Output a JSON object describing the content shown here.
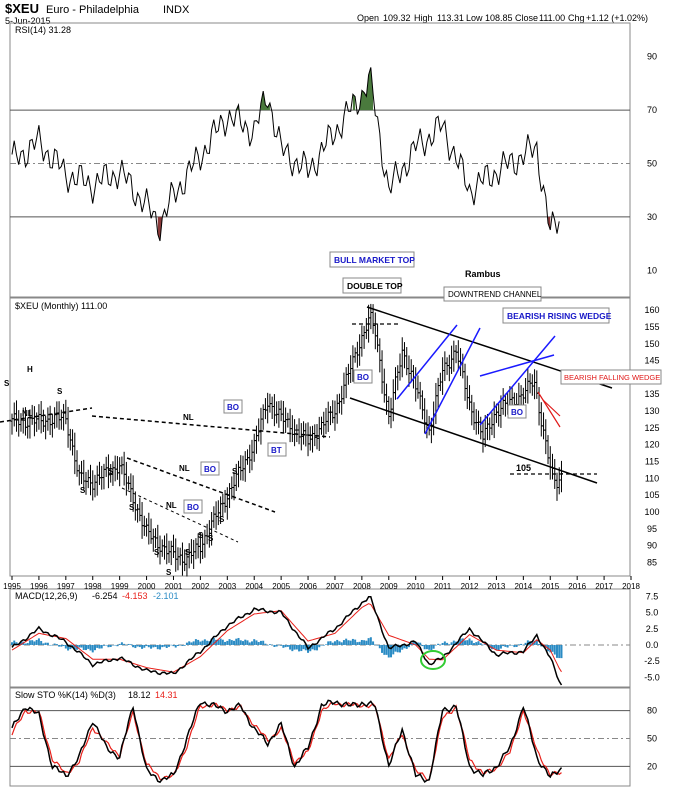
{
  "header": {
    "symbol": "$XEU",
    "name": "Euro - Philadelphia",
    "exchange": "INDX",
    "date": "5-Jun-2015",
    "quote": {
      "open_label": "Open",
      "open": "109.32",
      "high_label": "High",
      "high": "113.31",
      "low_label": "Low",
      "low": "108.85",
      "close_label": "Close",
      "close": "111.00",
      "chg_label": "Chg",
      "chg": "+1.12 (+1.02%)"
    }
  },
  "colors": {
    "price_bars": "#000000",
    "trendline_black": "#000000",
    "trendline_blue": "#1a1aff",
    "macd_hist": "#2a8bc4",
    "signal_red": "#e8201a",
    "rsi_fill_over": "#4a7a3d",
    "rsi_fill_under": "#8a3a3a",
    "annotation_blue": "#1818c8",
    "annotation_red": "#e01818",
    "green_circle": "#33cc33"
  },
  "panels": {
    "rsi": {
      "label": "RSI(14) 31.28",
      "y_ticks": [
        "90",
        "70",
        "50",
        "30",
        "10"
      ],
      "levels": [
        70,
        50,
        30
      ],
      "ylim": [
        0,
        100
      ]
    },
    "price": {
      "label": "$XEU (Monthly) 111.00",
      "y_ticks": [
        "160",
        "155",
        "150",
        "145",
        "140",
        "135",
        "130",
        "125",
        "120",
        "115",
        "110",
        "105",
        "100",
        "95",
        "90",
        "85"
      ],
      "ylim": [
        81,
        163
      ],
      "x_ticks": [
        "1995",
        "1996",
        "1997",
        "1998",
        "1999",
        "2000",
        "2001",
        "2002",
        "2003",
        "2004",
        "2005",
        "2006",
        "2007",
        "2008",
        "2009",
        "2010",
        "2011",
        "2012",
        "2013",
        "2014",
        "2015",
        "2016",
        "2017",
        "2018"
      ]
    },
    "macd": {
      "label_main": "MACD(12,26,9)",
      "label_macd": "-6.254",
      "label_signal": "-4.153",
      "label_hist": "-2.101",
      "y_ticks": [
        "7.5",
        "5.0",
        "2.5",
        "0.0",
        "-2.5",
        "-5.0"
      ],
      "ylim": [
        -6.5,
        8.5
      ]
    },
    "sto": {
      "label_main": "Slow STO %K(14) %D(3)",
      "label_k": "18.12",
      "label_d": "14.31",
      "y_ticks": [
        "80",
        "50",
        "20"
      ],
      "levels": [
        80,
        50,
        20
      ],
      "ylim": [
        0,
        100
      ]
    }
  },
  "annotations": {
    "bull_market_top": "BULL MARKET TOP",
    "double_top": "DOUBLE TOP",
    "rambus": "Rambus",
    "downtrend_channel": "DOWNTREND CHANNEL",
    "bearish_rising_wedge": "BEARISH RISING WEDGE",
    "bearish_falling_wedge": "BEARISH FALLING WEDGE",
    "level_105": "105",
    "nl": "NL",
    "s": "S",
    "h": "H",
    "bo": "BO",
    "bt": "BT"
  },
  "chart_data": [
    {
      "type": "line",
      "title": "RSI(14) 31.28",
      "x": [
        1995.0,
        1996.0,
        1997.0,
        1998.0,
        1999.0,
        2000.0,
        2000.5,
        2001.0,
        2002.0,
        2003.0,
        2004.0,
        2004.5,
        2005.0,
        2006.0,
        2007.0,
        2008.0,
        2008.3,
        2009.0,
        2010.0,
        2011.0,
        2012.0,
        2013.0,
        2014.0,
        2014.5,
        2015.0,
        2015.4
      ],
      "values": [
        51,
        58,
        46,
        42,
        47,
        34,
        27,
        38,
        53,
        68,
        62,
        76,
        55,
        47,
        62,
        76,
        82,
        40,
        56,
        64,
        40,
        47,
        53,
        56,
        24,
        31
      ],
      "ylim": [
        0,
        100
      ],
      "levels": [
        70,
        50,
        30
      ]
    },
    {
      "type": "bar",
      "title": "$XEU (Monthly) 111.00",
      "x": [
        1995.0,
        1996.0,
        1997.0,
        1997.5,
        1998.0,
        1999.0,
        2000.0,
        2000.8,
        2001.5,
        2002.0,
        2003.0,
        2004.0,
        2004.5,
        2005.0,
        2006.0,
        2007.0,
        2008.0,
        2008.3,
        2008.5,
        2009.0,
        2009.5,
        2010.0,
        2010.5,
        2011.0,
        2011.5,
        2012.0,
        2012.5,
        2013.0,
        2014.0,
        2014.4,
        2015.0,
        2015.2,
        2015.4
      ],
      "values": [
        127,
        127,
        128,
        110,
        109,
        114,
        94,
        88,
        86,
        90,
        105,
        120,
        133,
        128,
        121,
        130,
        152,
        158,
        153,
        128,
        148,
        137,
        124,
        142,
        148,
        132,
        122,
        130,
        135,
        139,
        113,
        108,
        111
      ],
      "ylim": [
        81,
        163
      ],
      "xlim": [
        1995,
        2018.5
      ]
    },
    {
      "type": "line",
      "title": "MACD(12,26,9)",
      "series": [
        {
          "name": "MACD",
          "x": [
            1995.0,
            1996.0,
            1997.0,
            1998.0,
            1999.0,
            2000.0,
            2001.0,
            2002.0,
            2003.0,
            2004.0,
            2005.0,
            2006.0,
            2007.0,
            2008.0,
            2008.3,
            2009.0,
            2010.0,
            2010.5,
            2011.0,
            2012.0,
            2013.0,
            2014.0,
            2014.5,
            2015.0,
            2015.4
          ],
          "values": [
            -0.5,
            2.5,
            0.5,
            -3.0,
            -2.0,
            -4.0,
            -4.5,
            -1.0,
            3.0,
            5.5,
            5.0,
            -0.5,
            2.5,
            6.5,
            7.5,
            -0.5,
            0.5,
            -3.0,
            -2.0,
            2.5,
            -1.5,
            -1.0,
            1.5,
            -2.0,
            -6.25
          ]
        },
        {
          "name": "Signal",
          "x": [
            1995.0,
            1996.0,
            1997.0,
            1998.0,
            1999.0,
            2000.0,
            2001.0,
            2002.0,
            2003.0,
            2004.0,
            2005.0,
            2006.0,
            2007.0,
            2008.0,
            2008.3,
            2009.0,
            2010.0,
            2010.5,
            2011.0,
            2012.0,
            2013.0,
            2014.0,
            2014.5,
            2015.0,
            2015.4
          ],
          "values": [
            -0.8,
            1.8,
            1.0,
            -2.2,
            -2.2,
            -3.5,
            -4.2,
            -1.8,
            2.2,
            4.8,
            5.3,
            0.6,
            1.8,
            5.8,
            6.5,
            1.5,
            0.0,
            -2.2,
            -2.3,
            1.6,
            -0.8,
            -1.2,
            0.8,
            -0.8,
            -4.15
          ]
        }
      ],
      "ylim": [
        -6.5,
        8.5
      ]
    },
    {
      "type": "line",
      "title": "Slow STO %K(14) %D(3)",
      "series": [
        {
          "name": "%K",
          "x": [
            1995.0,
            1995.5,
            1996.0,
            1996.5,
            1997.0,
            1997.5,
            1998.0,
            1998.5,
            1999.0,
            1999.5,
            2000.0,
            2000.5,
            2001.0,
            2001.5,
            2002.0,
            2002.5,
            2003.0,
            2003.5,
            2004.0,
            2004.5,
            2005.0,
            2005.5,
            2006.0,
            2006.5,
            2007.0,
            2007.5,
            2008.0,
            2008.5,
            2009.0,
            2009.5,
            2010.0,
            2010.5,
            2011.0,
            2011.5,
            2012.0,
            2012.5,
            2013.0,
            2013.5,
            2014.0,
            2014.5,
            2015.0,
            2015.4
          ],
          "values": [
            60,
            85,
            75,
            20,
            10,
            30,
            70,
            40,
            30,
            85,
            15,
            5,
            10,
            50,
            90,
            85,
            80,
            85,
            60,
            45,
            65,
            20,
            40,
            85,
            90,
            85,
            88,
            85,
            20,
            60,
            10,
            5,
            80,
            85,
            20,
            10,
            20,
            40,
            85,
            30,
            8,
            18
          ]
        },
        {
          "name": "%D",
          "x": [
            1995.0,
            1995.5,
            1996.0,
            1996.5,
            1997.0,
            1997.5,
            1998.0,
            1998.5,
            1999.0,
            1999.5,
            2000.0,
            2000.5,
            2001.0,
            2001.5,
            2002.0,
            2002.5,
            2003.0,
            2003.5,
            2004.0,
            2004.5,
            2005.0,
            2005.5,
            2006.0,
            2006.5,
            2007.0,
            2007.5,
            2008.0,
            2008.5,
            2009.0,
            2009.5,
            2010.0,
            2010.5,
            2011.0,
            2011.5,
            2012.0,
            2012.5,
            2013.0,
            2013.5,
            2014.0,
            2014.5,
            2015.0,
            2015.4
          ],
          "values": [
            55,
            80,
            78,
            28,
            12,
            25,
            62,
            45,
            32,
            78,
            22,
            8,
            9,
            42,
            85,
            86,
            81,
            83,
            65,
            48,
            60,
            25,
            35,
            80,
            88,
            86,
            86,
            84,
            28,
            55,
            15,
            6,
            72,
            84,
            28,
            12,
            18,
            35,
            80,
            38,
            10,
            14
          ]
        }
      ],
      "ylim": [
        0,
        100
      ],
      "levels": [
        80,
        50,
        20
      ]
    }
  ]
}
